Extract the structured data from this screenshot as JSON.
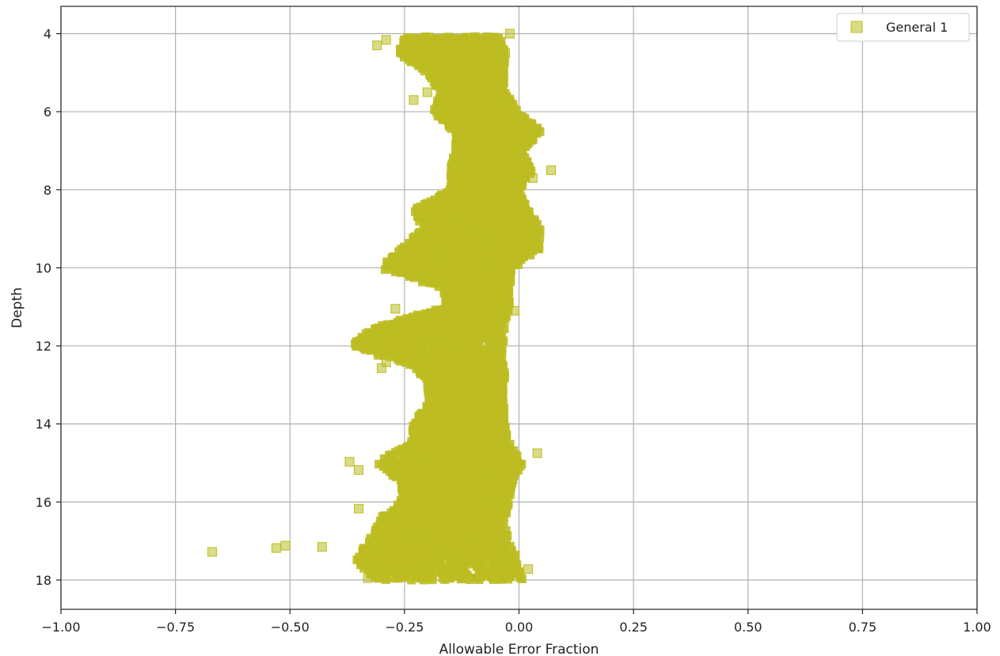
{
  "chart_data": {
    "type": "scatter",
    "title": "",
    "xlabel": "Allowable Error Fraction",
    "ylabel": "Depth",
    "xlim": [
      -1.0,
      1.0
    ],
    "ylim": [
      18.75,
      3.3
    ],
    "y_inverted": true,
    "grid": true,
    "legend_position": "top-right",
    "x_ticks": [
      "−1.00",
      "−0.75",
      "−0.50",
      "−0.25",
      "0.00",
      "0.25",
      "0.50",
      "0.75",
      "1.00"
    ],
    "x_tick_values": [
      -1.0,
      -0.75,
      -0.5,
      -0.25,
      0.0,
      0.25,
      0.5,
      0.75,
      1.0
    ],
    "y_ticks": [
      "4",
      "6",
      "8",
      "10",
      "12",
      "14",
      "16",
      "18"
    ],
    "y_tick_values": [
      4,
      6,
      8,
      10,
      12,
      14,
      16,
      18
    ],
    "marker": "square",
    "colors": {
      "series": "#bcbd22"
    },
    "series": [
      {
        "name": "General 1",
        "profile": [
          {
            "depth": 4.1,
            "min": -0.25,
            "max": -0.04
          },
          {
            "depth": 4.5,
            "min": -0.27,
            "max": -0.03
          },
          {
            "depth": 5.0,
            "min": -0.2,
            "max": -0.03
          },
          {
            "depth": 5.5,
            "min": -0.17,
            "max": -0.03
          },
          {
            "depth": 6.0,
            "min": -0.19,
            "max": 0.0
          },
          {
            "depth": 6.5,
            "min": -0.14,
            "max": 0.05
          },
          {
            "depth": 7.0,
            "min": -0.14,
            "max": 0.01
          },
          {
            "depth": 7.5,
            "min": -0.15,
            "max": 0.03
          },
          {
            "depth": 8.0,
            "min": -0.15,
            "max": 0.0
          },
          {
            "depth": 8.5,
            "min": -0.23,
            "max": 0.02
          },
          {
            "depth": 9.0,
            "min": -0.21,
            "max": 0.05
          },
          {
            "depth": 9.5,
            "min": -0.26,
            "max": 0.05
          },
          {
            "depth": 10.0,
            "min": -0.3,
            "max": -0.01
          },
          {
            "depth": 10.5,
            "min": -0.17,
            "max": -0.02
          },
          {
            "depth": 11.0,
            "min": -0.16,
            "max": -0.02
          },
          {
            "depth": 11.5,
            "min": -0.31,
            "max": -0.03
          },
          {
            "depth": 12.0,
            "min": -0.37,
            "max": -0.03
          },
          {
            "depth": 12.5,
            "min": -0.23,
            "max": -0.03
          },
          {
            "depth": 13.0,
            "min": -0.2,
            "max": -0.03
          },
          {
            "depth": 13.5,
            "min": -0.2,
            "max": -0.03
          },
          {
            "depth": 14.0,
            "min": -0.23,
            "max": -0.03
          },
          {
            "depth": 14.5,
            "min": -0.24,
            "max": -0.02
          },
          {
            "depth": 15.0,
            "min": -0.31,
            "max": 0.01
          },
          {
            "depth": 15.5,
            "min": -0.26,
            "max": -0.01
          },
          {
            "depth": 16.0,
            "min": -0.26,
            "max": -0.02
          },
          {
            "depth": 16.5,
            "min": -0.31,
            "max": -0.03
          },
          {
            "depth": 17.0,
            "min": -0.33,
            "max": -0.02
          },
          {
            "depth": 17.5,
            "min": -0.36,
            "max": 0.0
          },
          {
            "depth": 18.0,
            "min": -0.31,
            "max": 0.01
          }
        ],
        "outliers": [
          {
            "x": -0.67,
            "y": 17.28
          },
          {
            "x": -0.53,
            "y": 17.18
          },
          {
            "x": -0.51,
            "y": 17.12
          },
          {
            "x": -0.43,
            "y": 17.15
          },
          {
            "x": -0.37,
            "y": 14.97
          },
          {
            "x": -0.35,
            "y": 15.18
          },
          {
            "x": -0.35,
            "y": 16.17
          },
          {
            "x": -0.33,
            "y": 17.95
          },
          {
            "x": -0.3,
            "y": 12.57
          },
          {
            "x": -0.29,
            "y": 12.42
          },
          {
            "x": -0.27,
            "y": 11.05
          },
          {
            "x": -0.31,
            "y": 4.3
          },
          {
            "x": -0.29,
            "y": 4.16
          },
          {
            "x": -0.23,
            "y": 5.7
          },
          {
            "x": -0.2,
            "y": 5.5
          },
          {
            "x": -0.02,
            "y": 4.0
          },
          {
            "x": -0.03,
            "y": 4.5
          },
          {
            "x": 0.03,
            "y": 7.7
          },
          {
            "x": 0.07,
            "y": 7.5
          },
          {
            "x": 0.04,
            "y": 14.75
          },
          {
            "x": 0.02,
            "y": 17.72
          },
          {
            "x": -0.04,
            "y": 11.35
          },
          {
            "x": -0.01,
            "y": 11.1
          }
        ]
      }
    ]
  }
}
